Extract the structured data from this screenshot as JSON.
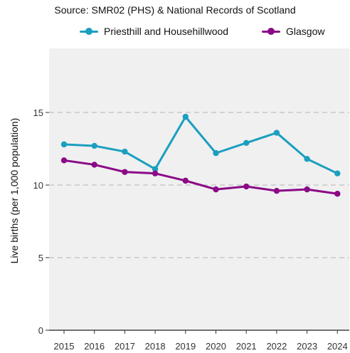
{
  "chart_data": {
    "type": "line",
    "subtitle": "Source: SMR02 (PHS) & National Records of Scotland",
    "title": "",
    "xlabel": "",
    "ylabel": "Live births (per 1,000 population)",
    "x": [
      "2015",
      "2016",
      "2017",
      "2018",
      "2019",
      "2020",
      "2021",
      "2022",
      "2023",
      "2024"
    ],
    "ylim": [
      0,
      19
    ],
    "yticks": [
      "0",
      "5",
      "10",
      "15"
    ],
    "grid": "horizontal dashed",
    "legend_position": "top",
    "series": [
      {
        "name": "Priesthill and Househillwood",
        "color": "#1a9fbf",
        "values": [
          12.8,
          12.7,
          12.3,
          11.1,
          14.7,
          12.2,
          12.9,
          13.6,
          11.8,
          10.8
        ]
      },
      {
        "name": "Glasgow",
        "color": "#8b0a86",
        "values": [
          11.7,
          11.4,
          10.9,
          10.8,
          10.3,
          9.7,
          9.9,
          9.6,
          9.7,
          9.4
        ]
      }
    ]
  },
  "colors": {
    "panel_bg": "#f0f0f0",
    "gridline": "#c8c8c8"
  }
}
